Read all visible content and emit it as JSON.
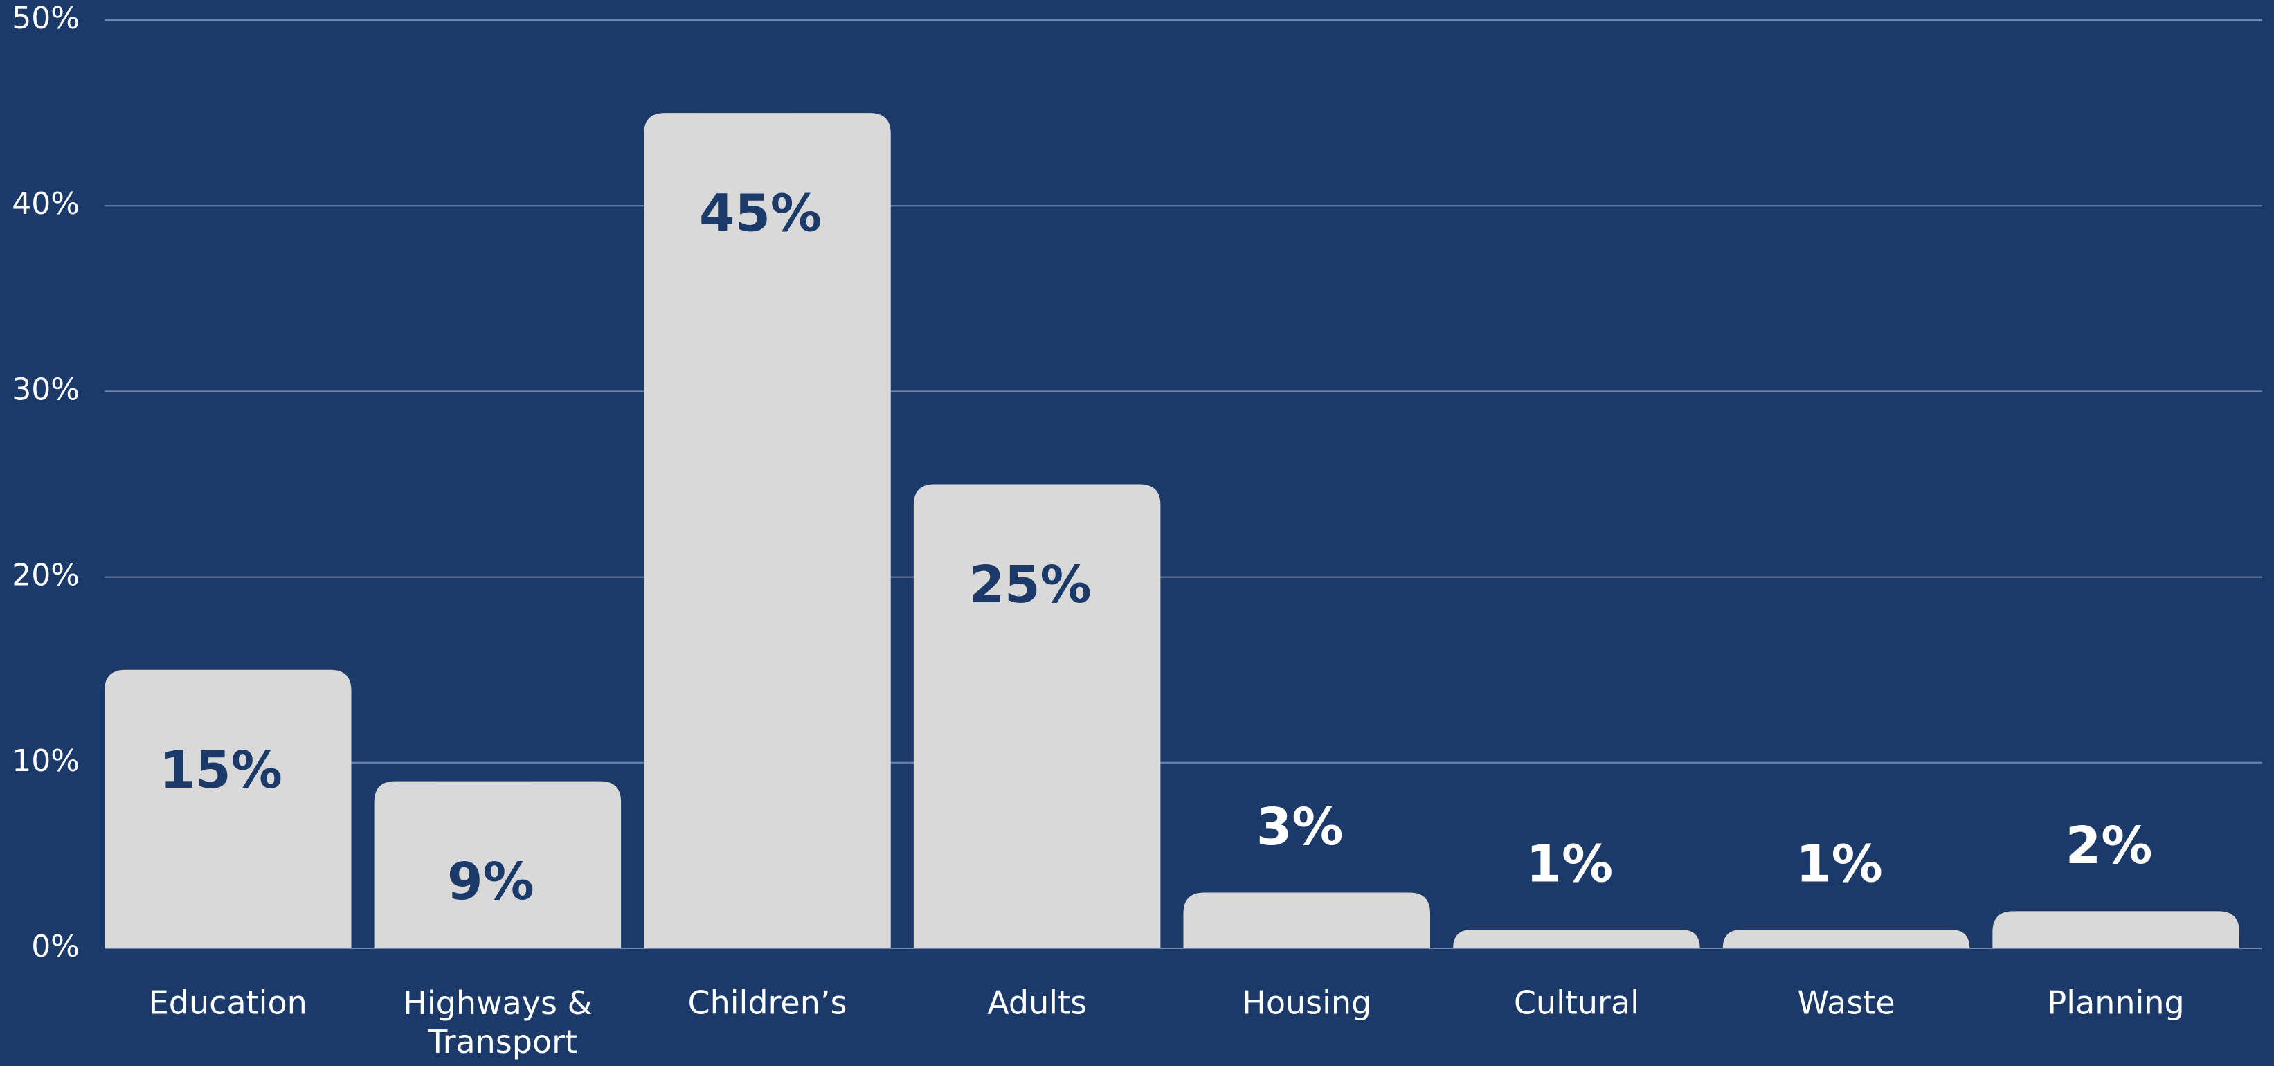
{
  "chart_data": {
    "type": "bar",
    "categories": [
      "Education",
      "Highways & Transport",
      "Children’s",
      "Adults",
      "Housing",
      "Cultural",
      "Waste",
      "Planning"
    ],
    "values": [
      15,
      9,
      45,
      25,
      3,
      1,
      1,
      2
    ],
    "value_labels": [
      "15%",
      "9%",
      "45%",
      "25%",
      "3%",
      "1%",
      "1%",
      "2%"
    ],
    "color": "#d9d9d9",
    "ylim": [
      0,
      50
    ],
    "yticks": [
      {
        "value": 0,
        "label": "0%"
      },
      {
        "value": 10,
        "label": "10%"
      },
      {
        "value": 20,
        "label": "20%"
      },
      {
        "value": 30,
        "label": "30%"
      },
      {
        "value": 40,
        "label": "40%"
      },
      {
        "value": 50,
        "label": "50%"
      }
    ],
    "grid": true
  }
}
